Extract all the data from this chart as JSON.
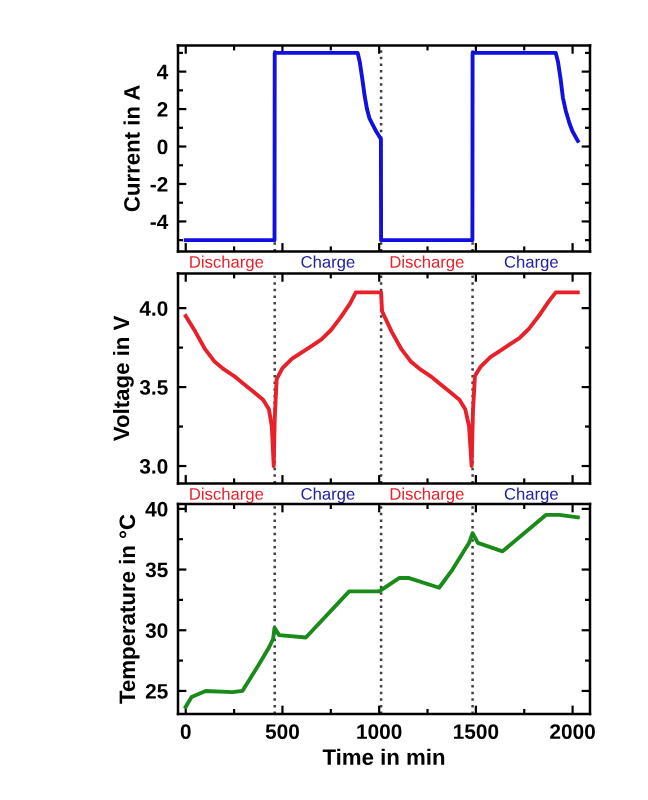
{
  "chart_data": [
    {
      "type": "line",
      "ylabel": "Current in A",
      "xlim": [
        -40,
        2090
      ],
      "xticks": [
        0,
        500,
        1000,
        1500,
        2000
      ],
      "ylim": [
        -5.6,
        5.4
      ],
      "yticks": [
        -4,
        -2,
        0,
        2,
        4
      ],
      "tick_labels": "y",
      "grid": false,
      "legend": false,
      "marker": "none",
      "line_style": "solid",
      "series": [
        {
          "color": "#1010e0",
          "x": [
            0,
            459,
            460,
            889,
            900,
            913,
            925,
            937,
            950,
            965,
            985,
            1009,
            1010,
            1482,
            1483,
            1913,
            1925,
            1938,
            1950,
            1965,
            1985,
            2000,
            2027
          ],
          "values": [
            -5,
            -5,
            5,
            5,
            4.5,
            3.6,
            2.7,
            2.0,
            1.5,
            1.2,
            0.8,
            0.4,
            -5,
            -5,
            5,
            5,
            4.5,
            3.6,
            2.6,
            1.9,
            1.2,
            0.8,
            0.3
          ]
        }
      ],
      "ref_lines": [
        {
          "axis": "x",
          "value": 460,
          "line_style": "dotted",
          "color": "#404040"
        },
        {
          "axis": "x",
          "value": 1010,
          "line_style": "dotted",
          "color": "#404040"
        },
        {
          "axis": "x",
          "value": 1483,
          "line_style": "dotted",
          "color": "#404040"
        }
      ],
      "annotations": [
        "Discharge",
        "Charge",
        "Discharge",
        "Charge"
      ]
    },
    {
      "type": "line",
      "ylabel": "Voltage in V",
      "xlim": [
        -40,
        2090
      ],
      "xticks": [
        0,
        500,
        1000,
        1500,
        2000
      ],
      "ylim": [
        2.89,
        4.22
      ],
      "yticks": [
        {
          "value": 3.0,
          "label": "3.0"
        },
        {
          "value": 3.5,
          "label": "3.5"
        },
        {
          "value": 4.0,
          "label": "4.0"
        }
      ],
      "tick_labels": "y",
      "grid": false,
      "legend": false,
      "marker": "none",
      "line_style": "solid",
      "series": [
        {
          "color": "#e8202a",
          "x": [
            0,
            50,
            100,
            150,
            200,
            250,
            300,
            350,
            400,
            430,
            445,
            455,
            460,
            470,
            500,
            550,
            600,
            650,
            700,
            750,
            800,
            850,
            879,
            1010,
            1015,
            1065,
            1115,
            1165,
            1215,
            1265,
            1315,
            1365,
            1415,
            1445,
            1465,
            1478,
            1485,
            1495,
            1525,
            1575,
            1625,
            1675,
            1725,
            1775,
            1825,
            1875,
            1913,
            2027
          ],
          "values": [
            3.95,
            3.85,
            3.74,
            3.66,
            3.61,
            3.57,
            3.52,
            3.47,
            3.42,
            3.36,
            3.25,
            3.0,
            3.3,
            3.55,
            3.62,
            3.68,
            3.72,
            3.76,
            3.8,
            3.86,
            3.94,
            4.03,
            4.1,
            4.1,
            3.98,
            3.85,
            3.74,
            3.66,
            3.61,
            3.57,
            3.52,
            3.47,
            3.42,
            3.36,
            3.25,
            3.0,
            3.35,
            3.57,
            3.63,
            3.69,
            3.73,
            3.77,
            3.81,
            3.87,
            3.95,
            4.04,
            4.1,
            4.1
          ]
        }
      ],
      "ref_lines": [
        {
          "axis": "x",
          "value": 460,
          "line_style": "dotted",
          "color": "#404040"
        },
        {
          "axis": "x",
          "value": 1010,
          "line_style": "dotted",
          "color": "#404040"
        },
        {
          "axis": "x",
          "value": 1483,
          "line_style": "dotted",
          "color": "#404040"
        }
      ],
      "annotations": [
        "Discharge",
        "Charge",
        "Discharge",
        "Charge"
      ]
    },
    {
      "type": "line",
      "xlabel": "Time in min",
      "ylabel": "Temperature in °C",
      "xlim": [
        -40,
        2090
      ],
      "ylim": [
        23.1,
        40.4
      ],
      "xticks": [
        0,
        500,
        1000,
        1500,
        2000
      ],
      "yticks": [
        25,
        30,
        35,
        40
      ],
      "grid": false,
      "legend": false,
      "marker": "none",
      "line_style": "solid",
      "series": [
        {
          "color": "#1a8a1a",
          "x": [
            0,
            30,
            103,
            241,
            293,
            379,
            431,
            452,
            459,
            483,
            621,
            845,
            1000,
            1103,
            1155,
            1310,
            1379,
            1465,
            1483,
            1510,
            1638,
            1862,
            1931,
            2027
          ],
          "values": [
            23.7,
            24.5,
            25.0,
            24.9,
            25.0,
            27.2,
            28.6,
            29.3,
            30.2,
            29.6,
            29.4,
            33.2,
            33.2,
            34.3,
            34.3,
            33.5,
            35.0,
            37.2,
            38.0,
            37.2,
            36.5,
            39.5,
            39.5,
            39.3
          ]
        }
      ],
      "ref_lines": [
        {
          "axis": "x",
          "value": 460,
          "line_style": "dotted",
          "color": "#404040"
        },
        {
          "axis": "x",
          "value": 1010,
          "line_style": "dotted",
          "color": "#404040"
        },
        {
          "axis": "x",
          "value": 1483,
          "line_style": "dotted",
          "color": "#404040"
        }
      ]
    }
  ]
}
